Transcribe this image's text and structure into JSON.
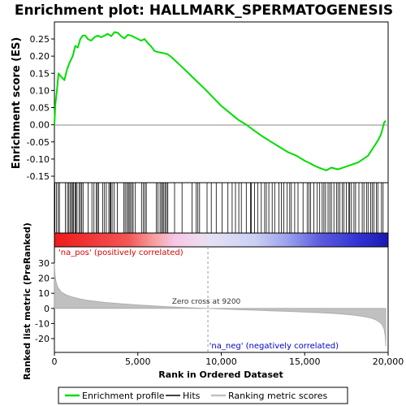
{
  "chart_data": {
    "type": "line",
    "title": "Enrichment plot: HALLMARK_SPERMATOGENESIS",
    "colors": {
      "es_line": "#00dd00",
      "hits": "#000000",
      "metric_fill": "#c0c0c0",
      "metric_line": "#a8a8a8",
      "pos_label": "#dd0000",
      "neg_label": "#0000cc"
    },
    "top_panel": {
      "ylabel": "Enrichment score (ES)",
      "ylim": [
        -0.16,
        0.29
      ],
      "yticks": [
        -0.15,
        -0.1,
        -0.05,
        0.0,
        0.05,
        0.1,
        0.15,
        0.2,
        0.25
      ],
      "ytick_labels": [
        "-0.15",
        "-0.10",
        "-0.05",
        "0.00",
        "0.05",
        "0.10",
        "0.15",
        "0.20",
        "0.25"
      ],
      "es_curve": {
        "x": [
          0,
          60,
          150,
          250,
          400,
          600,
          750,
          900,
          1100,
          1250,
          1400,
          1550,
          1700,
          1850,
          2000,
          2200,
          2400,
          2600,
          2800,
          3000,
          3200,
          3400,
          3600,
          3800,
          4000,
          4200,
          4400,
          4600,
          4800,
          5000,
          5200,
          5400,
          5600,
          5800,
          6000,
          6200,
          6400,
          6600,
          6800,
          7000,
          7500,
          8000,
          8500,
          9000,
          9500,
          10000,
          10500,
          11000,
          11500,
          12000,
          12500,
          13000,
          13500,
          14000,
          14500,
          15000,
          15300,
          15600,
          16000,
          16300,
          16600,
          17000,
          17300,
          17600,
          17900,
          18200,
          18500,
          18800,
          19000,
          19200,
          19400,
          19550,
          19650,
          19750,
          19850
        ],
        "y": [
          0.0,
          0.06,
          0.1,
          0.15,
          0.14,
          0.13,
          0.16,
          0.18,
          0.2,
          0.23,
          0.225,
          0.25,
          0.26,
          0.26,
          0.25,
          0.245,
          0.255,
          0.26,
          0.255,
          0.26,
          0.265,
          0.258,
          0.27,
          0.268,
          0.258,
          0.252,
          0.262,
          0.26,
          0.255,
          0.25,
          0.245,
          0.25,
          0.238,
          0.228,
          0.215,
          0.212,
          0.21,
          0.208,
          0.205,
          0.198,
          0.175,
          0.152,
          0.128,
          0.105,
          0.08,
          0.055,
          0.035,
          0.015,
          0.0,
          -0.018,
          -0.035,
          -0.05,
          -0.065,
          -0.08,
          -0.09,
          -0.105,
          -0.112,
          -0.12,
          -0.128,
          -0.133,
          -0.125,
          -0.13,
          -0.125,
          -0.12,
          -0.115,
          -0.11,
          -0.1,
          -0.09,
          -0.075,
          -0.06,
          -0.045,
          -0.03,
          -0.015,
          0.005,
          0.012
        ]
      }
    },
    "hits": [
      30,
      120,
      230,
      300,
      650,
      780,
      860,
      940,
      1020,
      1080,
      1150,
      1230,
      1290,
      1360,
      1480,
      1560,
      1640,
      1720,
      2020,
      2250,
      2370,
      2510,
      2580,
      2640,
      2900,
      3000,
      3110,
      3260,
      3330,
      3380,
      3460,
      3580,
      3770,
      4150,
      4240,
      4330,
      4420,
      4480,
      4560,
      4640,
      4720,
      4850,
      5220,
      5330,
      5420,
      5510,
      6100,
      6210,
      6330,
      6420,
      6480,
      6560,
      6640,
      6720,
      6800,
      7200,
      7650,
      8250,
      8500,
      8600,
      8700,
      9150,
      9400,
      9700,
      10050,
      10400,
      10650,
      10850,
      11050,
      11200,
      11500,
      11750,
      11800,
      12000,
      12180,
      12400,
      12600,
      12700,
      12850,
      13050,
      13200,
      13450,
      13600,
      13750,
      13950,
      14100,
      14200,
      14400,
      14600,
      14900,
      15150,
      15250,
      15350,
      15550,
      15750,
      15900,
      16050,
      16150,
      16250,
      16400,
      16500,
      16600,
      16750,
      16900,
      17000,
      17100,
      17250,
      17350,
      17500,
      17650,
      17700,
      17800,
      17950,
      18050,
      18250,
      18450,
      18550,
      18700,
      18800,
      18950,
      19050,
      19150,
      19300,
      19380,
      19600,
      19700
    ],
    "heatmap": {
      "label_pos": "'na_pos' (positively correlated)",
      "label_neg": "'na_neg' (negatively correlated)"
    },
    "bottom_panel": {
      "ylabel": "Ranked list metric (PreRanked)",
      "xlabel": "Rank in Ordered Dataset",
      "ylim": [
        -27,
        32
      ],
      "yticks": [
        -20,
        -10,
        0,
        10,
        20,
        30
      ],
      "ytick_labels": [
        "-20",
        "-10",
        "0",
        "10",
        "20",
        "30"
      ],
      "xlim": [
        0,
        20000
      ],
      "xticks": [
        0,
        5000,
        10000,
        15000,
        20000
      ],
      "xtick_labels": [
        "0",
        "5,000",
        "10,000",
        "15,000",
        "20,000"
      ],
      "zero_cross": 9200,
      "zero_cross_label": "Zero cross at 9200",
      "metric_curve": {
        "x": [
          0,
          40,
          100,
          200,
          400,
          700,
          1000,
          1500,
          2000,
          3000,
          4000,
          5000,
          6000,
          7000,
          8000,
          9000,
          9200,
          10000,
          11000,
          12000,
          13000,
          14000,
          15000,
          16000,
          17000,
          18000,
          18500,
          19000,
          19300,
          19500,
          19650,
          19750,
          19820,
          19860
        ],
        "y": [
          30,
          22,
          17.5,
          14,
          11,
          9,
          7.8,
          6.4,
          5.3,
          4.0,
          3.1,
          2.3,
          1.6,
          1.0,
          0.5,
          0.1,
          0.0,
          -0.4,
          -0.8,
          -1.2,
          -1.6,
          -2.0,
          -2.4,
          -2.9,
          -3.5,
          -4.5,
          -5.3,
          -6.5,
          -7.8,
          -9.2,
          -11,
          -13.5,
          -18,
          -25
        ]
      }
    },
    "legend": {
      "items": [
        {
          "label": "Enrichment profile",
          "color": "#00dd00"
        },
        {
          "label": "Hits",
          "color": "#000000"
        },
        {
          "label": "Ranking metric scores",
          "color": "#c0c0c0"
        }
      ]
    }
  }
}
